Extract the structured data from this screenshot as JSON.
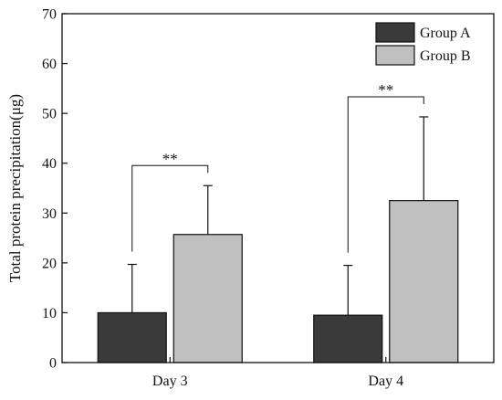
{
  "chart_data": {
    "type": "bar",
    "categories": [
      "Day 3",
      "Day 4"
    ],
    "series": [
      {
        "name": "Group A",
        "values": [
          10.0,
          9.5
        ],
        "errors": [
          9.7,
          10.0
        ],
        "color": "#3a3a3a"
      },
      {
        "name": "Group B",
        "values": [
          25.7,
          32.5
        ],
        "errors": [
          9.8,
          16.8
        ],
        "color": "#c0c0c0"
      }
    ],
    "ylabel": "Total protein precipitation(μg)",
    "xlabel": "",
    "ylim": [
      0,
      70
    ],
    "yticks": [
      0,
      10,
      20,
      30,
      40,
      50,
      60,
      70
    ],
    "grid": false,
    "legend": "top-right",
    "annotations": [
      {
        "category": "Day 3",
        "text": "**"
      },
      {
        "category": "Day 4",
        "text": "**"
      }
    ]
  }
}
